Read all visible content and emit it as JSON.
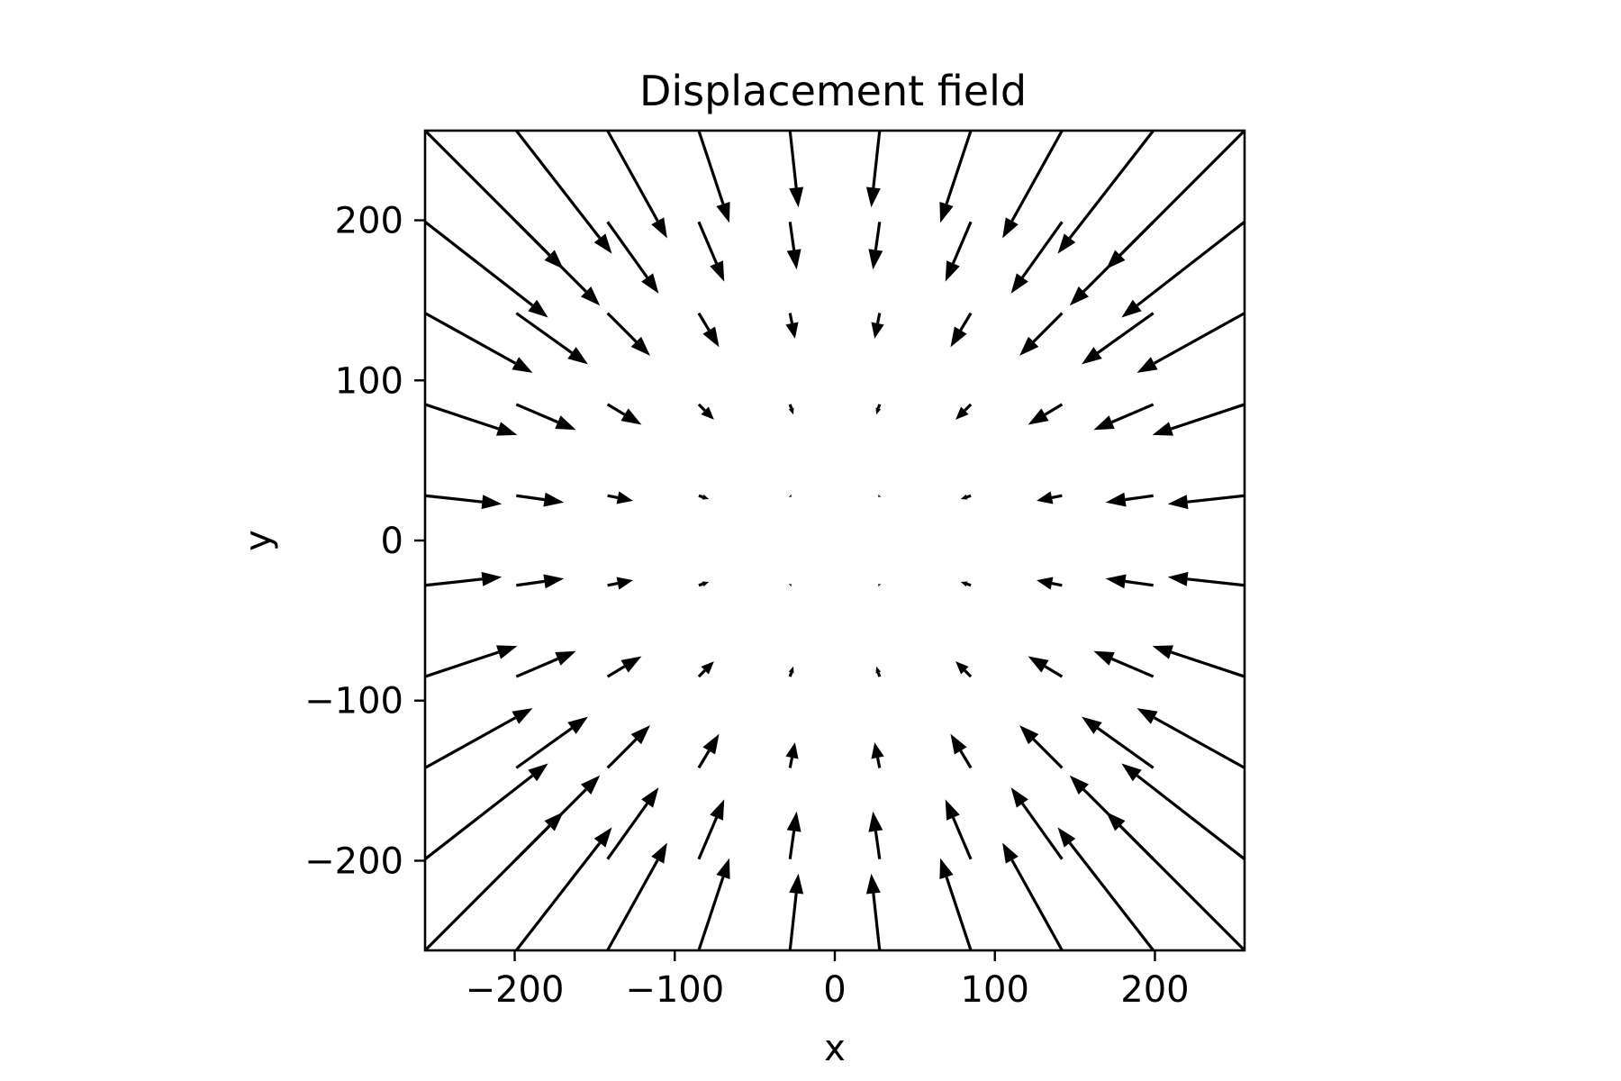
{
  "chart_data": {
    "type": "quiver",
    "title": "Displacement field",
    "xlabel": "x",
    "ylabel": "y",
    "xlim": [
      -256,
      256
    ],
    "ylim": [
      -256,
      256
    ],
    "xticks": [
      -200,
      -100,
      0,
      100,
      200
    ],
    "xtick_labels": [
      "−200",
      "−100",
      "0",
      "100",
      "200"
    ],
    "yticks": [
      -200,
      -100,
      0,
      100,
      200
    ],
    "ytick_labels": [
      "−200",
      "−100",
      "0",
      "100",
      "200"
    ],
    "grid": false,
    "grid_x": [
      -256,
      -199,
      -142,
      -85,
      -28,
      28,
      85,
      142,
      199,
      256
    ],
    "grid_y": [
      256,
      199,
      142,
      85,
      28,
      -28,
      -85,
      -142,
      -199,
      -256
    ],
    "displacement_model": "radial convergence toward origin; u = -0.00066*x*(|x|+|y|) , v = -0.00066*y*(|x|+|y|)",
    "arrow_color": "#000000"
  }
}
